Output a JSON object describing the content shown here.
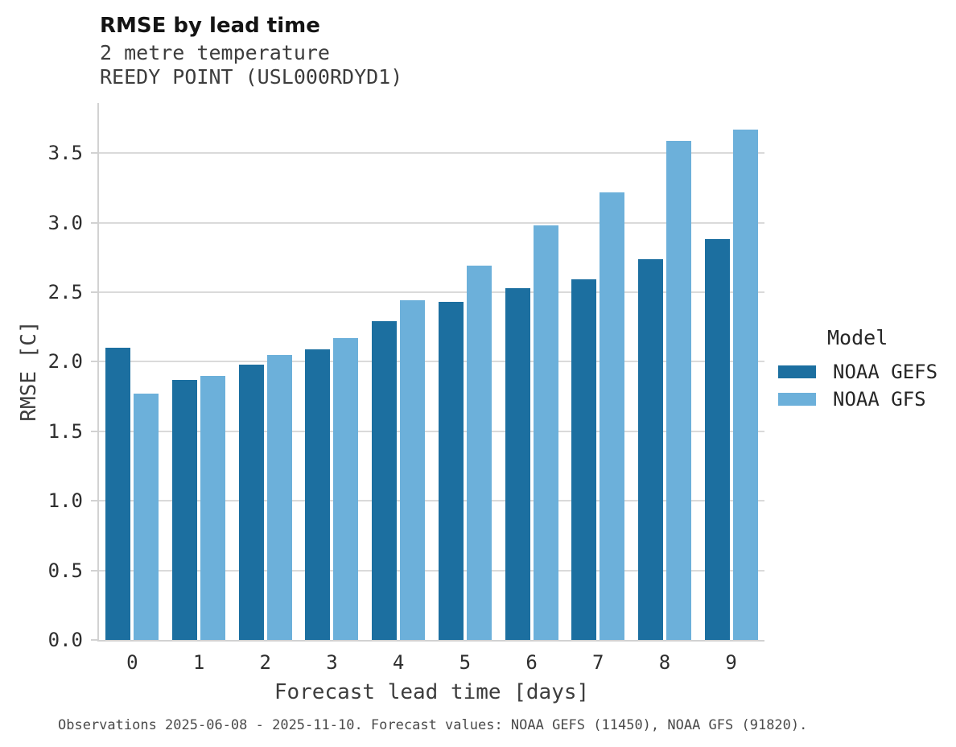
{
  "header": {
    "title": "RMSE by lead time",
    "subtitle_line1": "2 metre temperature",
    "subtitle_line2": "REEDY POINT (USL000RDYD1)"
  },
  "chart_data": {
    "type": "bar",
    "title": "RMSE by lead time",
    "subtitle": [
      "2 metre temperature",
      "REEDY POINT (USL000RDYD1)"
    ],
    "categories": [
      "0",
      "1",
      "2",
      "3",
      "4",
      "5",
      "6",
      "7",
      "8",
      "9"
    ],
    "series": [
      {
        "name": "NOAA GEFS",
        "color": "#1c6fa0",
        "values": [
          2.1,
          1.87,
          1.98,
          2.09,
          2.29,
          2.43,
          2.53,
          2.59,
          2.74,
          2.88
        ]
      },
      {
        "name": "NOAA GFS",
        "color": "#6cb0da",
        "values": [
          1.77,
          1.9,
          2.05,
          2.17,
          2.44,
          2.69,
          2.98,
          3.22,
          3.59,
          3.67
        ]
      }
    ],
    "xlabel": "Forecast lead time [days]",
    "ylabel": "RMSE [C]",
    "ylim": [
      0,
      3.86
    ],
    "yticks": [
      0.0,
      0.5,
      1.0,
      1.5,
      2.0,
      2.5,
      3.0,
      3.5
    ],
    "grid": "horizontal",
    "legend_title": "Model",
    "legend_position": "right-of-plot"
  },
  "colors": {
    "series_dark": "#1c6fa0",
    "series_light": "#6cb0da",
    "gridline": "#dadada",
    "spine": "#d2d2d2",
    "text": "#262626"
  },
  "footer": {
    "note": "Observations 2025-06-08 - 2025-11-10. Forecast values: NOAA GEFS (11450), NOAA GFS (91820)."
  }
}
